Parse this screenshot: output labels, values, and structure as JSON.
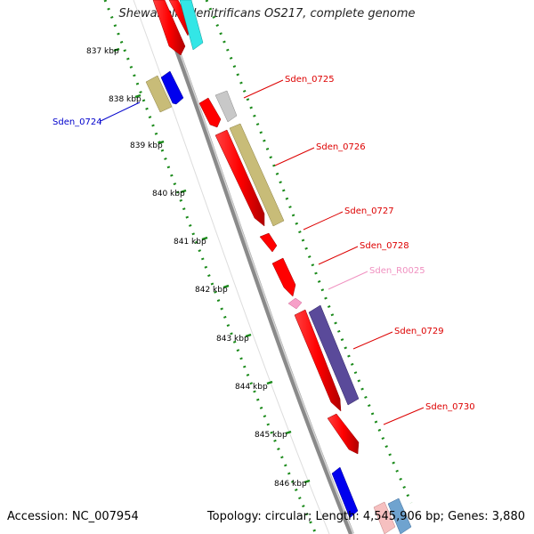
{
  "title": "Shewanella denitrificans OS217, complete genome",
  "footer": {
    "accession": "Accession: NC_007954",
    "summary": "Topology: circular; Length: 4,545,906 bp; Genes: 3,880"
  },
  "ruler_ticks": [
    {
      "label": "837 kbp"
    },
    {
      "label": "838 kbp"
    },
    {
      "label": "839 kbp"
    },
    {
      "label": "840 kbp"
    },
    {
      "label": "841 kbp"
    },
    {
      "label": "842 kbp"
    },
    {
      "label": "843 kbp"
    },
    {
      "label": "844 kbp"
    },
    {
      "label": "845 kbp"
    },
    {
      "label": "846 kbp"
    }
  ],
  "gene_labels": [
    {
      "text": "Sden_0724",
      "color": "#0000cc"
    },
    {
      "text": "Sden_0725",
      "color": "#dd0000"
    },
    {
      "text": "Sden_0726",
      "color": "#dd0000"
    },
    {
      "text": "Sden_0727",
      "color": "#dd0000"
    },
    {
      "text": "Sden_0728",
      "color": "#dd0000"
    },
    {
      "text": "Sden_R0025",
      "color": "#f090c0"
    },
    {
      "text": "Sden_0729",
      "color": "#dd0000"
    },
    {
      "text": "Sden_0730",
      "color": "#dd0000"
    }
  ],
  "colors": {
    "backbone": "#8a8a8a",
    "ruler": "#1a8a1a",
    "red_feature": "#ff0000",
    "blue_feature": "#0000ee",
    "khaki_feature": "#c8bc78",
    "purple_feature": "#5a4a9a",
    "cyan_feature": "#33e6e6",
    "grey_feature": "#c8c8c8",
    "pink_feature": "#f6a0c8"
  }
}
